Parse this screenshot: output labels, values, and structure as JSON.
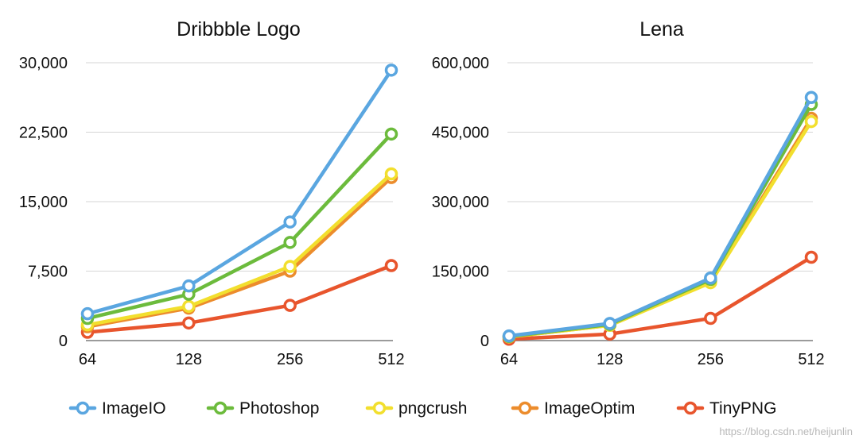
{
  "chart_data": [
    {
      "type": "line",
      "title": "Dribbble Logo",
      "x": [
        "64",
        "128",
        "256",
        "512"
      ],
      "ylim": [
        0,
        30000
      ],
      "yticks": [
        "0",
        "7,500",
        "15,000",
        "22,500",
        "30,000"
      ],
      "ytick_values": [
        0,
        7500,
        15000,
        22500,
        30000
      ],
      "grid": true,
      "series": [
        {
          "name": "ImageIO",
          "color": "#5aa6e0",
          "values": [
            2900,
            5900,
            12800,
            29200
          ]
        },
        {
          "name": "Photoshop",
          "color": "#6cbb3c",
          "values": [
            2400,
            5000,
            10600,
            22300
          ]
        },
        {
          "name": "pngcrush",
          "color": "#f2df2e",
          "values": [
            1700,
            3700,
            8000,
            18000
          ]
        },
        {
          "name": "ImageOptim",
          "color": "#ec8c2c",
          "values": [
            1500,
            3500,
            7500,
            17600
          ]
        },
        {
          "name": "TinyPNG",
          "color": "#e8552d",
          "values": [
            900,
            1900,
            3800,
            8100
          ]
        }
      ]
    },
    {
      "type": "line",
      "title": "Lena",
      "x": [
        "64",
        "128",
        "256",
        "512"
      ],
      "ylim": [
        0,
        600000
      ],
      "yticks": [
        "0",
        "150,000",
        "300,000",
        "450,000",
        "600,000"
      ],
      "ytick_values": [
        0,
        150000,
        300000,
        450000,
        600000
      ],
      "grid": true,
      "series": [
        {
          "name": "ImageIO",
          "color": "#5aa6e0",
          "values": [
            10000,
            37000,
            135000,
            525000
          ]
        },
        {
          "name": "Photoshop",
          "color": "#6cbb3c",
          "values": [
            9000,
            35000,
            132000,
            510000
          ]
        },
        {
          "name": "pngcrush",
          "color": "#f2df2e",
          "values": [
            8000,
            33000,
            125000,
            473000
          ]
        },
        {
          "name": "ImageOptim",
          "color": "#ec8c2c",
          "values": [
            8000,
            33000,
            127000,
            480000
          ]
        },
        {
          "name": "TinyPNG",
          "color": "#e8552d",
          "values": [
            3000,
            14000,
            48000,
            180000
          ]
        }
      ]
    }
  ],
  "legend": {
    "placement": "bottom",
    "items": [
      {
        "label": "ImageIO",
        "color": "#5aa6e0"
      },
      {
        "label": "Photoshop",
        "color": "#6cbb3c"
      },
      {
        "label": "pngcrush",
        "color": "#f2df2e"
      },
      {
        "label": "ImageOptim",
        "color": "#ec8c2c"
      },
      {
        "label": "TinyPNG",
        "color": "#e8552d"
      }
    ]
  },
  "watermark": "https://blog.csdn.net/heijunlin"
}
